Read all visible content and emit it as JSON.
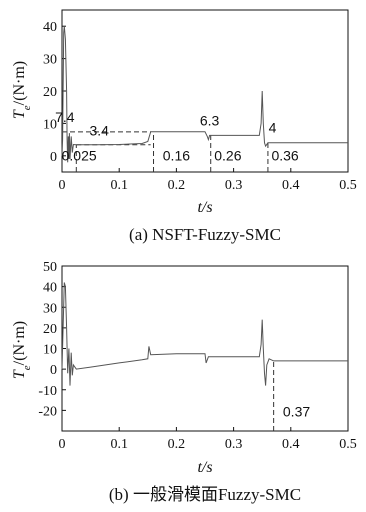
{
  "chart_data": [
    {
      "type": "line",
      "caption": "(a) NSFT-Fuzzy-SMC",
      "xlabel": "t/s",
      "ylabel": "Te/(N·m)",
      "ylabel_main": "T",
      "ylabel_sub": "e",
      "ylabel_rest": "/(N·m)",
      "xlim": [
        0,
        0.5
      ],
      "ylim": [
        -5,
        45
      ],
      "xticks": [
        0,
        0.1,
        0.2,
        0.3,
        0.4,
        0.5
      ],
      "xtick_labels": [
        "0",
        "0.1",
        "0.2",
        "0.3",
        "0.4",
        "0.5"
      ],
      "yticks": [
        0,
        10,
        20,
        30,
        40
      ],
      "ytick_labels": [
        "0",
        "10",
        "20",
        "30",
        "40"
      ],
      "grid": false,
      "series": [
        {
          "color": "#555555",
          "points": [
            [
              0,
              0
            ],
            [
              0.001,
              5
            ],
            [
              0.002,
              20
            ],
            [
              0.003,
              38
            ],
            [
              0.004,
              40
            ],
            [
              0.006,
              36
            ],
            [
              0.008,
              20
            ],
            [
              0.009,
              5
            ],
            [
              0.01,
              -2
            ],
            [
              0.011,
              6
            ],
            [
              0.012,
              -1
            ],
            [
              0.013,
              7
            ],
            [
              0.014,
              -1
            ],
            [
              0.016,
              6
            ],
            [
              0.018,
              1
            ],
            [
              0.02,
              3.5
            ],
            [
              0.025,
              3.4
            ],
            [
              0.06,
              3.4
            ],
            [
              0.1,
              3.5
            ],
            [
              0.14,
              3.8
            ],
            [
              0.15,
              4.4
            ],
            [
              0.155,
              7.4
            ],
            [
              0.16,
              7.4
            ],
            [
              0.2,
              7.4
            ],
            [
              0.25,
              7.4
            ],
            [
              0.254,
              6.0
            ],
            [
              0.256,
              5.0
            ],
            [
              0.258,
              6.3
            ],
            [
              0.26,
              6.3
            ],
            [
              0.3,
              6.3
            ],
            [
              0.345,
              6.3
            ],
            [
              0.348,
              10
            ],
            [
              0.35,
              20
            ],
            [
              0.352,
              10
            ],
            [
              0.354,
              4
            ],
            [
              0.356,
              3
            ],
            [
              0.36,
              4
            ],
            [
              0.4,
              4
            ],
            [
              0.45,
              4
            ],
            [
              0.5,
              4
            ]
          ]
        }
      ],
      "annotations": [
        {
          "text": "7.4",
          "x": 0.005,
          "y": 10.5
        },
        {
          "text": "3.4",
          "x": 0.065,
          "y": 6.2
        },
        {
          "text": "0.025",
          "x": 0.03,
          "y": -1.4
        },
        {
          "text": "0.16",
          "x": 0.2,
          "y": -1.4
        },
        {
          "text": "6.3",
          "x": 0.258,
          "y": 9.3
        },
        {
          "text": "0.26",
          "x": 0.29,
          "y": -1.4
        },
        {
          "text": "4",
          "x": 0.368,
          "y": 7.2
        },
        {
          "text": "0.36",
          "x": 0.39,
          "y": -1.4
        }
      ],
      "ref_lines": [
        {
          "from": [
            0,
            7.4
          ],
          "to": [
            0.155,
            7.4
          ]
        },
        {
          "from": [
            0.025,
            3.4
          ],
          "to": [
            0.155,
            3.4
          ]
        },
        {
          "from": [
            0.16,
            -5
          ],
          "to": [
            0.16,
            7.4
          ]
        },
        {
          "from": [
            0.26,
            -5
          ],
          "to": [
            0.26,
            6.3
          ]
        },
        {
          "from": [
            0.36,
            -5
          ],
          "to": [
            0.36,
            4
          ]
        },
        {
          "from": [
            0.025,
            -5
          ],
          "to": [
            0.025,
            3.4
          ]
        }
      ]
    },
    {
      "type": "line",
      "caption": "(b) 一般滑模面Fuzzy-SMC",
      "xlabel": "t/s",
      "ylabel": "Te/(N·m)",
      "ylabel_main": "T",
      "ylabel_sub": "e",
      "ylabel_rest": "/(N·m)",
      "xlim": [
        0,
        0.5
      ],
      "ylim": [
        -30,
        50
      ],
      "xticks": [
        0,
        0.1,
        0.2,
        0.3,
        0.4,
        0.5
      ],
      "xtick_labels": [
        "0",
        "0.1",
        "0.2",
        "0.3",
        "0.4",
        "0.5"
      ],
      "yticks": [
        -20,
        -10,
        0,
        10,
        20,
        30,
        40,
        50
      ],
      "ytick_labels": [
        "-20",
        "-10",
        "0",
        "10",
        "20",
        "30",
        "40",
        "50"
      ],
      "grid": false,
      "series": [
        {
          "color": "#555555",
          "points": [
            [
              0,
              0
            ],
            [
              0.002,
              20
            ],
            [
              0.004,
              42
            ],
            [
              0.006,
              40
            ],
            [
              0.008,
              20
            ],
            [
              0.01,
              -2
            ],
            [
              0.012,
              10
            ],
            [
              0.014,
              -8
            ],
            [
              0.016,
              8
            ],
            [
              0.018,
              -3
            ],
            [
              0.02,
              2
            ],
            [
              0.025,
              0
            ],
            [
              0.05,
              1
            ],
            [
              0.1,
              3
            ],
            [
              0.14,
              4.5
            ],
            [
              0.15,
              5
            ],
            [
              0.152,
              11
            ],
            [
              0.155,
              7
            ],
            [
              0.2,
              7.5
            ],
            [
              0.25,
              7.5
            ],
            [
              0.252,
              3
            ],
            [
              0.256,
              6
            ],
            [
              0.26,
              6
            ],
            [
              0.3,
              6
            ],
            [
              0.345,
              6
            ],
            [
              0.348,
              12
            ],
            [
              0.35,
              24
            ],
            [
              0.352,
              10
            ],
            [
              0.354,
              -2
            ],
            [
              0.356,
              -8
            ],
            [
              0.358,
              2
            ],
            [
              0.362,
              5
            ],
            [
              0.37,
              4
            ],
            [
              0.4,
              4
            ],
            [
              0.45,
              4
            ],
            [
              0.5,
              4
            ]
          ]
        }
      ],
      "annotations": [
        {
          "text": "0.37",
          "x": 0.41,
          "y": -23
        }
      ],
      "ref_lines": [
        {
          "from": [
            0.37,
            -30
          ],
          "to": [
            0.37,
            4
          ]
        }
      ]
    }
  ]
}
